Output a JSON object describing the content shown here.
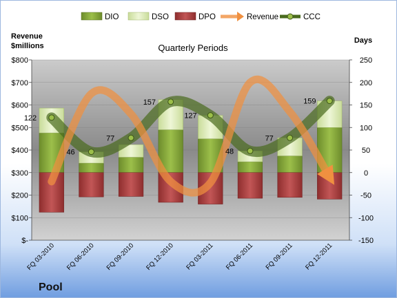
{
  "chart_data": {
    "type": "bar",
    "title": "Quarterly Periods",
    "company": "Pool",
    "categories": [
      "FQ 03-2010",
      "FQ 06-2010",
      "FQ 09-2010",
      "FQ 12-2010",
      "FQ 03-2011",
      "FQ 06-2011",
      "FQ 09-2011",
      "FQ 12-2011"
    ],
    "left_axis": {
      "title_line1": "Revenue",
      "title_line2": "$millions",
      "ylim": [
        0,
        800
      ],
      "ticks": [
        0,
        100,
        200,
        300,
        400,
        500,
        600,
        700,
        800
      ],
      "tick_labels": [
        "$-",
        "$100",
        "$200",
        "$300",
        "$400",
        "$500",
        "$600",
        "$700",
        "$800"
      ]
    },
    "right_axis": {
      "title": "Days",
      "ylim": [
        -150,
        250
      ],
      "ticks": [
        -150,
        -100,
        -50,
        0,
        50,
        100,
        150,
        200,
        250
      ],
      "tick_labels": [
        "-150",
        "-100",
        "-50",
        "0",
        "50",
        "100",
        "150",
        "200",
        "250"
      ]
    },
    "series": [
      {
        "name": "DIO",
        "axis": "right",
        "kind": "stacked-bar",
        "color": "#7a9a34",
        "values": [
          88,
          21,
          34,
          95,
          75,
          24,
          37,
          100
        ]
      },
      {
        "name": "DSO",
        "axis": "right",
        "kind": "stacked-bar",
        "color": "#d9e9b0",
        "values": [
          55,
          25,
          28,
          67,
          52,
          24,
          40,
          59
        ]
      },
      {
        "name": "DPO",
        "axis": "right",
        "kind": "negative-bar",
        "color": "#a83e3e",
        "values": [
          -88,
          -54,
          -53,
          -66,
          -70,
          -57,
          -55,
          -59
        ]
      },
      {
        "name": "Revenue",
        "axis": "left",
        "kind": "line",
        "color": "#f09040",
        "values": [
          260,
          650,
          560,
          260,
          255,
          700,
          570,
          280
        ]
      },
      {
        "name": "CCC",
        "axis": "right",
        "kind": "line",
        "color": "#4a6b1e",
        "values": [
          122,
          46,
          77,
          157,
          127,
          48,
          77,
          159
        ]
      }
    ],
    "data_labels": [
      "122",
      "46",
      "77",
      "157",
      "127",
      "48",
      "77",
      "159"
    ],
    "legend_position": "top",
    "grid": true,
    "colors": {
      "background_top": "#ffffff",
      "background_bottom": "#7aa6e6",
      "plot_top": "#c8c8c8",
      "plot_mid": "#8c8c8c",
      "plot_bottom": "#cfcfcf"
    }
  }
}
